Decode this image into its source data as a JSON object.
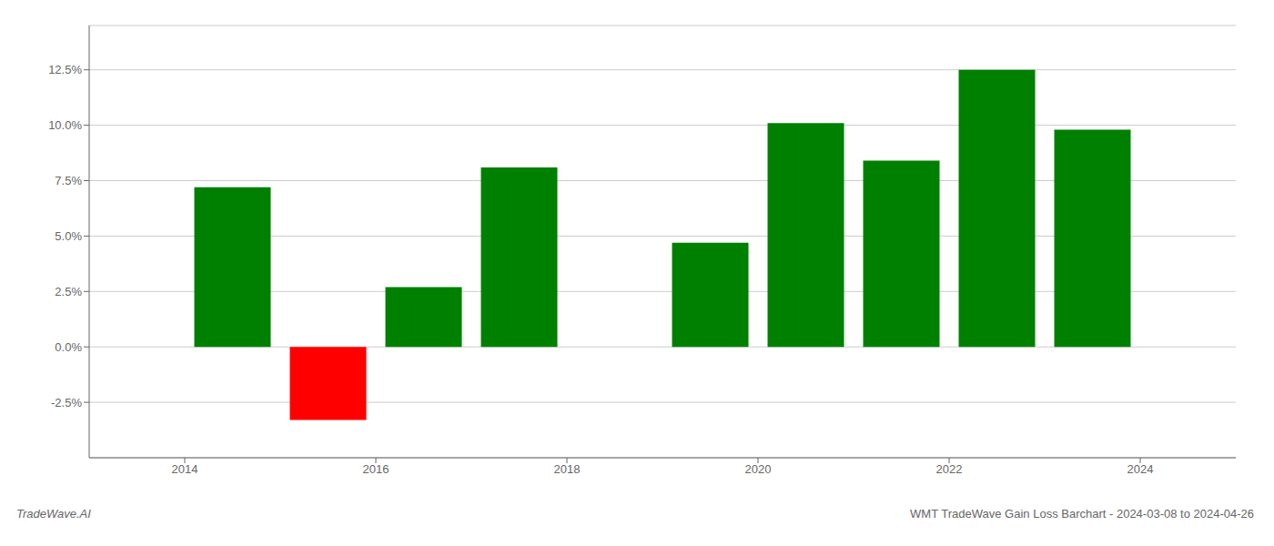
{
  "chart_data": {
    "type": "bar",
    "x": [
      2014.5,
      2015.5,
      2016.5,
      2017.5,
      2019.5,
      2020.5,
      2021.5,
      2022.5,
      2023.5
    ],
    "values": [
      0.072,
      -0.033,
      0.027,
      0.081,
      0.047,
      0.101,
      0.084,
      0.125,
      0.098
    ],
    "colors": [
      "#008000",
      "#ff0000",
      "#008000",
      "#008000",
      "#008000",
      "#008000",
      "#008000",
      "#008000",
      "#008000"
    ],
    "xlim": [
      2013.0,
      2025.0
    ],
    "xticks": [
      2014,
      2016,
      2018,
      2020,
      2022,
      2024
    ],
    "ylim": [
      -0.05,
      0.145
    ],
    "yticks": [
      {
        "value": -0.025,
        "label": "-2.5%"
      },
      {
        "value": 0.0,
        "label": "0.0%"
      },
      {
        "value": 0.025,
        "label": "2.5%"
      },
      {
        "value": 0.05,
        "label": "5.0%"
      },
      {
        "value": 0.075,
        "label": "7.5%"
      },
      {
        "value": 0.1,
        "label": "10.0%"
      },
      {
        "value": 0.125,
        "label": "12.5%"
      }
    ],
    "grid": true,
    "annotations": [
      "TradeWave.AI",
      "WMT TradeWave Gain Loss Barchart - 2024-03-08 to 2024-04-26"
    ]
  }
}
